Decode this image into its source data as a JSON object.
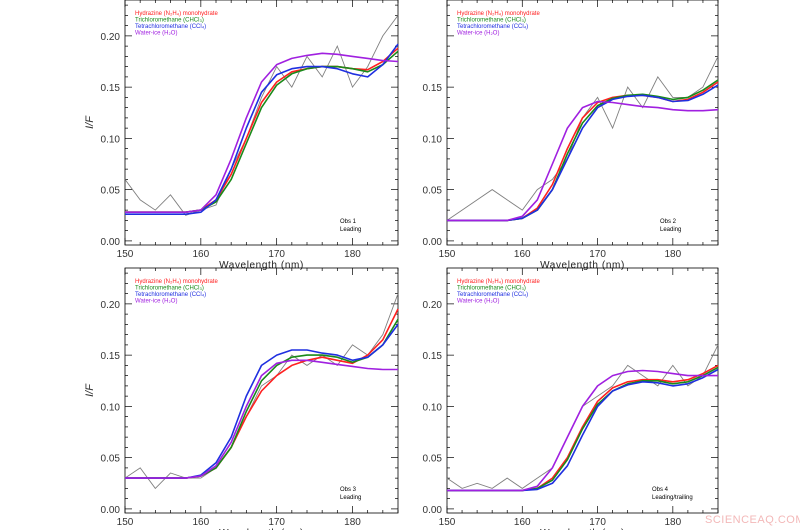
{
  "colors": {
    "hydrazine": "#ff2020",
    "trichloro": "#1a8a1a",
    "tetrachloro": "#1f2fe0",
    "water": "#a020e0",
    "observed": "#808080"
  },
  "legend": [
    "Hydrazine (N₂H₄) monohydrate",
    "Trichloromethane (CHCl₃)",
    "Tetrachloromethane (CCl₄)",
    "Water-ice (H₂O)"
  ],
  "watermark": "SCIENCEAQ.COM",
  "chart_data": [
    {
      "type": "line",
      "xlabel": "Wavelength (nm)",
      "ylabel": "I/F",
      "xlim": [
        150,
        186
      ],
      "ylim": [
        -0.004,
        0.235
      ],
      "xticks": [
        "150",
        "160",
        "170",
        "180"
      ],
      "yticks": [
        "0.00",
        "0.05",
        "0.10",
        "0.15",
        "0.20"
      ],
      "annotation": [
        "Obs 1",
        "Leading"
      ],
      "x": [
        150,
        152,
        154,
        156,
        158,
        160,
        162,
        164,
        166,
        168,
        170,
        172,
        174,
        176,
        178,
        180,
        182,
        184,
        186
      ],
      "observed": [
        0.06,
        0.04,
        0.03,
        0.045,
        0.025,
        0.03,
        0.035,
        0.07,
        0.1,
        0.14,
        0.17,
        0.15,
        0.18,
        0.16,
        0.19,
        0.15,
        0.17,
        0.2,
        0.22
      ],
      "series": [
        {
          "name": "Hydrazine (N₂H₄) monohydrate",
          "values": [
            0.028,
            0.028,
            0.028,
            0.028,
            0.028,
            0.03,
            0.04,
            0.065,
            0.1,
            0.135,
            0.155,
            0.165,
            0.168,
            0.17,
            0.17,
            0.168,
            0.167,
            0.175,
            0.188
          ]
        },
        {
          "name": "Trichloromethane (CHCl₃)",
          "values": [
            0.028,
            0.028,
            0.028,
            0.028,
            0.028,
            0.03,
            0.038,
            0.06,
            0.095,
            0.13,
            0.152,
            0.163,
            0.168,
            0.17,
            0.17,
            0.168,
            0.165,
            0.172,
            0.185
          ]
        },
        {
          "name": "Tetrachloromethane (CCl₄)",
          "values": [
            0.026,
            0.026,
            0.026,
            0.026,
            0.026,
            0.028,
            0.04,
            0.07,
            0.11,
            0.145,
            0.162,
            0.168,
            0.17,
            0.17,
            0.168,
            0.163,
            0.16,
            0.172,
            0.192
          ]
        },
        {
          "name": "Water-ice (H₂O)",
          "values": [
            0.028,
            0.028,
            0.028,
            0.028,
            0.028,
            0.03,
            0.045,
            0.08,
            0.12,
            0.155,
            0.172,
            0.178,
            0.181,
            0.183,
            0.182,
            0.18,
            0.178,
            0.176,
            0.175
          ]
        }
      ]
    },
    {
      "type": "line",
      "xlabel": "Wavelength (nm)",
      "ylabel": "",
      "xlim": [
        150,
        186
      ],
      "ylim": [
        -0.004,
        0.235
      ],
      "xticks": [
        "150",
        "160",
        "170",
        "180"
      ],
      "yticks": [
        "0.00",
        "0.05",
        "0.10",
        "0.15"
      ],
      "annotation": [
        "Obs 2",
        "Leading"
      ],
      "x": [
        150,
        152,
        154,
        156,
        158,
        160,
        162,
        164,
        166,
        168,
        170,
        172,
        174,
        176,
        178,
        180,
        182,
        184,
        186
      ],
      "observed": [
        0.02,
        0.03,
        0.04,
        0.05,
        0.04,
        0.03,
        0.05,
        0.06,
        0.08,
        0.12,
        0.14,
        0.11,
        0.15,
        0.13,
        0.16,
        0.14,
        0.14,
        0.15,
        0.18
      ],
      "series": [
        {
          "name": "Hydrazine (N₂H₄) monohydrate",
          "values": [
            0.02,
            0.02,
            0.02,
            0.02,
            0.02,
            0.022,
            0.032,
            0.055,
            0.09,
            0.12,
            0.135,
            0.14,
            0.142,
            0.142,
            0.14,
            0.136,
            0.138,
            0.145,
            0.155
          ]
        },
        {
          "name": "Trichloromethane (CHCl₃)",
          "values": [
            0.02,
            0.02,
            0.02,
            0.02,
            0.02,
            0.022,
            0.03,
            0.05,
            0.085,
            0.115,
            0.132,
            0.139,
            0.142,
            0.143,
            0.141,
            0.138,
            0.14,
            0.147,
            0.157
          ]
        },
        {
          "name": "Tetrachloromethane (CCl₄)",
          "values": [
            0.02,
            0.02,
            0.02,
            0.02,
            0.02,
            0.022,
            0.03,
            0.05,
            0.08,
            0.11,
            0.13,
            0.138,
            0.141,
            0.142,
            0.14,
            0.136,
            0.137,
            0.143,
            0.152
          ]
        },
        {
          "name": "Water-ice (H₂O)",
          "values": [
            0.02,
            0.02,
            0.02,
            0.02,
            0.02,
            0.024,
            0.04,
            0.075,
            0.11,
            0.13,
            0.136,
            0.135,
            0.133,
            0.131,
            0.13,
            0.128,
            0.127,
            0.127,
            0.128
          ]
        }
      ]
    },
    {
      "type": "line",
      "xlabel": "Wavelength (nm)",
      "ylabel": "I/F",
      "xlim": [
        150,
        186
      ],
      "ylim": [
        -0.004,
        0.235
      ],
      "xticks": [
        "150",
        "160",
        "170",
        "180"
      ],
      "yticks": [
        "0.00",
        "0.05",
        "0.10",
        "0.15",
        "0.20"
      ],
      "annotation": [
        "Obs 3",
        "Leading"
      ],
      "x": [
        150,
        152,
        154,
        156,
        158,
        160,
        162,
        164,
        166,
        168,
        170,
        172,
        174,
        176,
        178,
        180,
        182,
        184,
        186
      ],
      "observed": [
        0.03,
        0.04,
        0.02,
        0.035,
        0.03,
        0.03,
        0.04,
        0.06,
        0.09,
        0.12,
        0.13,
        0.15,
        0.14,
        0.15,
        0.14,
        0.16,
        0.15,
        0.17,
        0.21
      ],
      "series": [
        {
          "name": "Hydrazine (N₂H₄) monohydrate",
          "values": [
            0.03,
            0.03,
            0.03,
            0.03,
            0.03,
            0.032,
            0.04,
            0.06,
            0.09,
            0.115,
            0.13,
            0.14,
            0.145,
            0.148,
            0.145,
            0.142,
            0.15,
            0.165,
            0.195
          ]
        },
        {
          "name": "Trichloromethane (CHCl₃)",
          "values": [
            0.03,
            0.03,
            0.03,
            0.03,
            0.03,
            0.032,
            0.04,
            0.06,
            0.095,
            0.125,
            0.14,
            0.148,
            0.15,
            0.15,
            0.148,
            0.143,
            0.148,
            0.16,
            0.185
          ]
        },
        {
          "name": "Tetrachloromethane (CCl₄)",
          "values": [
            0.03,
            0.03,
            0.03,
            0.03,
            0.03,
            0.033,
            0.045,
            0.07,
            0.11,
            0.14,
            0.15,
            0.155,
            0.155,
            0.152,
            0.15,
            0.145,
            0.148,
            0.16,
            0.18
          ]
        },
        {
          "name": "Water-ice (H₂O)",
          "values": [
            0.03,
            0.03,
            0.03,
            0.03,
            0.03,
            0.032,
            0.042,
            0.065,
            0.1,
            0.13,
            0.142,
            0.145,
            0.145,
            0.143,
            0.141,
            0.139,
            0.137,
            0.136,
            0.136
          ]
        }
      ]
    },
    {
      "type": "line",
      "xlabel": "Wavelength (nm)",
      "ylabel": "",
      "xlim": [
        150,
        186
      ],
      "ylim": [
        -0.004,
        0.235
      ],
      "xticks": [
        "150",
        "160",
        "170",
        "180"
      ],
      "yticks": [
        "0.00",
        "0.05",
        "0.10",
        "0.15",
        "0.20"
      ],
      "annotation": [
        "Obs 4",
        "Leading/trailing"
      ],
      "x": [
        150,
        152,
        154,
        156,
        158,
        160,
        162,
        164,
        166,
        168,
        170,
        172,
        174,
        176,
        178,
        180,
        182,
        184,
        186
      ],
      "observed": [
        0.03,
        0.02,
        0.025,
        0.02,
        0.03,
        0.02,
        0.03,
        0.04,
        0.07,
        0.1,
        0.11,
        0.12,
        0.14,
        0.13,
        0.12,
        0.14,
        0.12,
        0.13,
        0.16
      ],
      "series": [
        {
          "name": "Hydrazine (N₂H₄) monohydrate",
          "values": [
            0.018,
            0.018,
            0.018,
            0.018,
            0.018,
            0.018,
            0.02,
            0.03,
            0.05,
            0.08,
            0.105,
            0.118,
            0.124,
            0.126,
            0.126,
            0.124,
            0.126,
            0.132,
            0.14
          ]
        },
        {
          "name": "Trichloromethane (CHCl₃)",
          "values": [
            0.018,
            0.018,
            0.018,
            0.018,
            0.018,
            0.018,
            0.02,
            0.028,
            0.048,
            0.078,
            0.102,
            0.115,
            0.122,
            0.125,
            0.125,
            0.122,
            0.124,
            0.13,
            0.138
          ]
        },
        {
          "name": "Tetrachloromethane (CCl₄)",
          "values": [
            0.018,
            0.018,
            0.018,
            0.018,
            0.018,
            0.018,
            0.019,
            0.025,
            0.042,
            0.072,
            0.1,
            0.115,
            0.121,
            0.124,
            0.123,
            0.12,
            0.122,
            0.128,
            0.136
          ]
        },
        {
          "name": "Water-ice (H₂O)",
          "values": [
            0.018,
            0.018,
            0.018,
            0.018,
            0.018,
            0.018,
            0.022,
            0.04,
            0.07,
            0.1,
            0.12,
            0.13,
            0.134,
            0.135,
            0.134,
            0.132,
            0.13,
            0.13,
            0.13
          ]
        }
      ]
    }
  ]
}
